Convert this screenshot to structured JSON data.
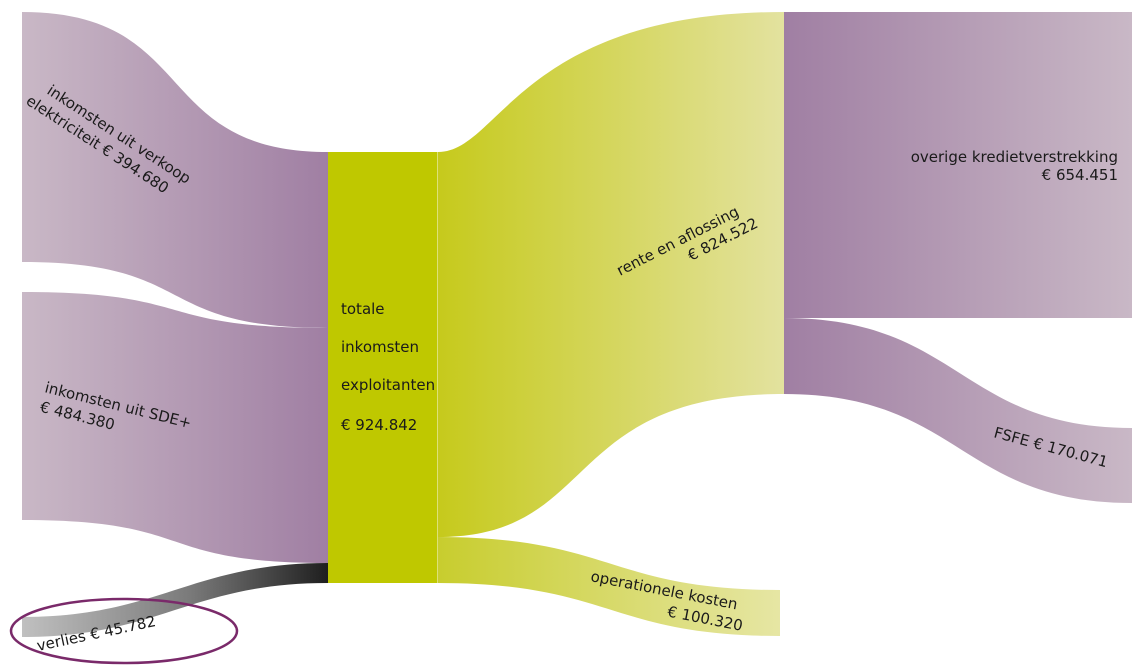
{
  "chart_data": {
    "type": "sankey",
    "currency": "€",
    "nodes": [
      {
        "id": "verkoop",
        "label": "inkomsten uit verkoop\nelektriciteit € 394.680"
      },
      {
        "id": "sde",
        "label": "inkomsten uit SDE+\n€ 484.380"
      },
      {
        "id": "verlies",
        "label": "verlies € 45.782"
      },
      {
        "id": "totaal",
        "label": "totale\ninkomsten\nexploitanten\n€ 924.842"
      },
      {
        "id": "rente",
        "label": "rente en aflossing\n€ 824.522"
      },
      {
        "id": "operationeel",
        "label": "operationele kosten\n€ 100.320"
      },
      {
        "id": "overig",
        "label": "overige kredietverstrekking\n€ 654.451"
      },
      {
        "id": "fsfe",
        "label": "FSFE € 170.071"
      }
    ],
    "links": [
      {
        "source": "verkoop",
        "target": "totaal",
        "value": 394680
      },
      {
        "source": "sde",
        "target": "totaal",
        "value": 484380
      },
      {
        "source": "verlies",
        "target": "totaal",
        "value": 45782
      },
      {
        "source": "totaal",
        "target": "rente",
        "value": 824522
      },
      {
        "source": "totaal",
        "target": "operationeel",
        "value": 100320
      },
      {
        "source": "rente",
        "target": "overig",
        "value": 654451
      },
      {
        "source": "rente",
        "target": "fsfe",
        "value": 170071
      }
    ]
  },
  "labels": {
    "verkoop_line1": "inkomsten uit verkoop",
    "verkoop_line2": "elektriciteit € 394.680",
    "sde_line1": "inkomsten uit SDE+",
    "sde_line2": "€ 484.380",
    "verlies": "verlies € 45.782",
    "totaal_line1": "totale",
    "totaal_line2": "inkomsten",
    "totaal_line3": "exploitanten",
    "totaal_line4": "€ 924.842",
    "rente_line1": "rente en aflossing",
    "rente_line2": "€ 824.522",
    "operationeel_line1": "operationele kosten",
    "operationeel_line2": "€ 100.320",
    "overig_line1": "overige kredietverstrekking",
    "overig_line2": "€ 654.451",
    "fsfe": "FSFE € 170.071"
  },
  "colors": {
    "purple_dark": "#a07fa3",
    "purple_light": "#c9b8c6",
    "green_dark": "#bfc800",
    "green_mid": "#c8cd2e",
    "green_light": "#e3e29f",
    "loss_dark": "#1f1f1f",
    "loss_light": "#b8b8b8",
    "ellipse": "#7a2a6a",
    "divider": "#e6e9a0"
  }
}
